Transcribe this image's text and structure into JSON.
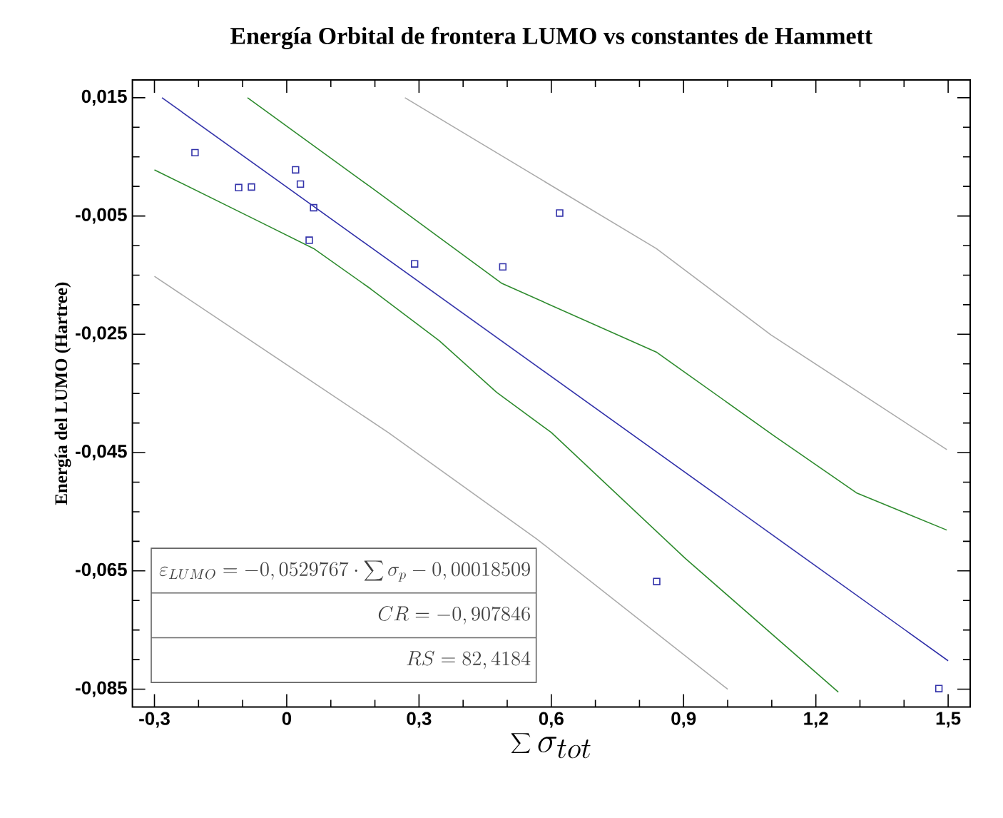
{
  "chart_data": {
    "type": "scatter",
    "title": "Energía Orbital de frontera LUMO vs constantes de Hammett",
    "xlabel": "\\sum \\sigma_{tot}",
    "ylabel": "Energía del LUMO (Hartree)",
    "xlim": [
      -0.35,
      1.55
    ],
    "ylim": [
      -0.088,
      0.018
    ],
    "xticks": [
      {
        "value": -0.3,
        "label": "-0,3"
      },
      0,
      {
        "value": 0.3,
        "label": "0,3"
      },
      {
        "value": 0.6,
        "label": "0,6"
      },
      {
        "value": 0.9,
        "label": "0,9"
      },
      {
        "value": 1.2,
        "label": "1,2"
      },
      {
        "value": 1.5,
        "label": "1,5"
      }
    ],
    "yticks": [
      {
        "value": 0.015,
        "label": "0,015"
      },
      {
        "value": -0.005,
        "label": "-0,005"
      },
      {
        "value": -0.025,
        "label": "-0,025"
      },
      {
        "value": -0.045,
        "label": "-0,045"
      },
      {
        "value": -0.065,
        "label": "-0,065"
      },
      {
        "value": -0.085,
        "label": "-0,085"
      }
    ],
    "series": [
      {
        "color": "#3333aa",
        "marker": "square",
        "x": [
          -0.208,
          -0.109,
          -0.08,
          0.02,
          0.031,
          0.061,
          0.051,
          0.29,
          0.49,
          0.619,
          0.839,
          1.479
        ],
        "values": [
          0.0057,
          -0.0002,
          -0.0001,
          0.0028,
          0.0004,
          -0.0036,
          -0.0091,
          -0.0131,
          -0.0136,
          -0.0045,
          -0.0668,
          -0.0849
        ]
      },
      {
        "type": "line",
        "color": "#3333aa",
        "x": [
          -0.283,
          1.5
        ],
        "values": [
          0.015,
          -0.0802
        ]
      },
      {
        "type": "line",
        "color": "#2e8b2e",
        "x": [
          -0.089,
          0.19,
          0.488,
          0.838,
          1.104,
          1.292,
          1.497
        ],
        "values": [
          0.015,
          -0.0001,
          -0.0164,
          -0.028,
          -0.0421,
          -0.0518,
          -0.0581
        ]
      },
      {
        "type": "line",
        "color": "#2e8b2e",
        "x": [
          -0.3,
          -0.069,
          0.061,
          0.19,
          0.346,
          0.476,
          0.6,
          0.904,
          1.251
        ],
        "values": [
          0.0028,
          -0.0057,
          -0.0105,
          -0.0173,
          -0.0261,
          -0.0348,
          -0.0416,
          -0.0629,
          -0.0855
        ]
      },
      {
        "type": "line",
        "color": "#aaaaaa",
        "x": [
          0.268,
          0.838,
          1.098,
          1.497
        ],
        "values": [
          0.015,
          -0.0105,
          -0.0251,
          -0.0445
        ]
      },
      {
        "type": "line",
        "color": "#aaaaaa",
        "x": [
          -0.3,
          0.23,
          0.567,
          1.0
        ],
        "values": [
          -0.0152,
          -0.0416,
          -0.0596,
          -0.085
        ]
      }
    ],
    "annotations": [
      "\\varepsilon_{LUMO} = -0,0529767 \\cdot \\sum \\sigma_p - 0,00018509",
      "CR = -0,907846",
      "RS = 82,4184"
    ]
  }
}
